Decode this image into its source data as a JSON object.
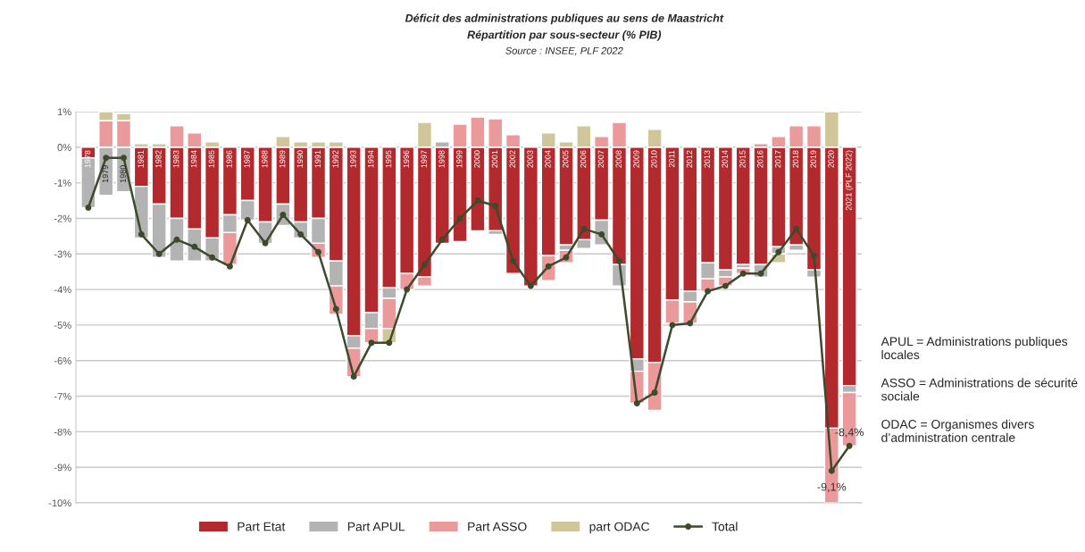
{
  "chart_data": {
    "type": "bar",
    "stacked": true,
    "title": "Déficit des administrations publiques au sens de Maastricht",
    "subtitle": "Répartition par sous-secteur (% PIB)",
    "categories": [
      "1978",
      "1979",
      "1980",
      "1981",
      "1982",
      "1983",
      "1984",
      "1985",
      "1986",
      "1987",
      "1988",
      "1989",
      "1990",
      "1991",
      "1992",
      "1993",
      "1994",
      "1995",
      "1996",
      "1997",
      "1998",
      "1999",
      "2000",
      "2001",
      "2002",
      "2003",
      "2004",
      "2005",
      "2006",
      "2007",
      "2008",
      "2009",
      "2010",
      "2011",
      "2012",
      "2013",
      "2014",
      "2015",
      "2016",
      "2017",
      "2018",
      "2019",
      "2020",
      "2021 (PLF 2022)"
    ],
    "series": [
      {
        "name": "Part Etat",
        "color": "#b22a2e",
        "values": [
          -0.3,
          null,
          null,
          -1.1,
          -1.6,
          -2.0,
          -2.3,
          -2.55,
          -1.9,
          -1.5,
          -2.1,
          -1.6,
          -2.1,
          -2.0,
          -3.2,
          -5.3,
          -4.65,
          -3.95,
          -3.55,
          -3.65,
          -2.7,
          -2.65,
          -2.35,
          -2.35,
          -3.55,
          -3.9,
          -3.05,
          -2.75,
          -2.6,
          -2.05,
          -3.3,
          -5.95,
          -6.05,
          -4.3,
          -4.05,
          -3.25,
          -3.45,
          -3.3,
          -3.3,
          -2.8,
          -2.75,
          -3.45,
          -7.9,
          -6.7
        ]
      },
      {
        "name": "Part APUL",
        "color": "#b3b3b3",
        "values": [
          -1.4,
          -1.35,
          -1.25,
          -1.45,
          -1.5,
          -1.2,
          -0.9,
          -0.65,
          -0.5,
          -0.55,
          -0.6,
          -0.6,
          -0.45,
          -0.7,
          -0.7,
          -0.35,
          -0.45,
          -0.3,
          null,
          null,
          0.15,
          null,
          null,
          -0.1,
          null,
          null,
          null,
          -0.15,
          -0.25,
          -0.7,
          -0.6,
          -0.35,
          null,
          null,
          -0.3,
          -0.45,
          -0.2,
          -0.1,
          -0.35,
          -0.2,
          -0.15,
          -0.2,
          null,
          -0.2
        ]
      },
      {
        "name": "Part ASSO",
        "color": "#eb9a9c",
        "values": [
          null,
          0.75,
          0.75,
          null,
          null,
          0.6,
          0.4,
          null,
          -0.9,
          null,
          null,
          null,
          null,
          -0.4,
          -0.8,
          -0.8,
          -0.4,
          -0.85,
          -0.45,
          -0.25,
          null,
          0.65,
          0.85,
          0.8,
          0.35,
          null,
          -0.7,
          -0.35,
          null,
          0.3,
          0.7,
          -0.9,
          -1.35,
          -0.65,
          -0.6,
          -0.35,
          -0.25,
          -0.15,
          0.1,
          0.3,
          0.6,
          0.6,
          -2.1,
          -1.5
        ]
      },
      {
        "name": "part ODAC",
        "color": "#cfc79a",
        "values": [
          null,
          0.25,
          0.2,
          0.1,
          0.1,
          null,
          null,
          0.15,
          null,
          null,
          null,
          0.3,
          0.15,
          0.15,
          0.15,
          null,
          null,
          -0.4,
          null,
          0.7,
          null,
          null,
          null,
          null,
          null,
          null,
          0.4,
          0.15,
          0.6,
          null,
          null,
          null,
          0.5,
          null,
          null,
          null,
          null,
          null,
          null,
          -0.25,
          null,
          null,
          1.0,
          null
        ]
      },
      {
        "name": "Total",
        "type": "line",
        "color": "#3d4a2b",
        "marker": "circle",
        "values": [
          -1.7,
          -0.3,
          -0.3,
          -2.45,
          -3.0,
          -2.6,
          -2.8,
          -3.1,
          -3.35,
          -2.05,
          -2.7,
          -1.9,
          -2.45,
          -2.95,
          -4.55,
          -6.45,
          -5.5,
          -5.5,
          -4.0,
          -3.3,
          -2.6,
          -2.0,
          -1.5,
          -1.65,
          -3.2,
          -3.9,
          -3.35,
          -3.1,
          -2.3,
          -2.45,
          -3.2,
          -7.2,
          -6.9,
          -5.0,
          -4.95,
          -4.05,
          -3.9,
          -3.55,
          -3.55,
          -2.95,
          -2.3,
          -3.05,
          -9.1,
          -8.4
        ]
      }
    ],
    "ylim": [
      -10,
      1
    ],
    "yticks": [
      {
        "value": 1,
        "label": "1%"
      },
      {
        "value": 0,
        "label": "0%"
      },
      {
        "value": -1,
        "label": "-1%"
      },
      {
        "value": -2,
        "label": "-2%"
      },
      {
        "value": -3,
        "label": "-3%"
      },
      {
        "value": -4,
        "label": "-4%"
      },
      {
        "value": -5,
        "label": "-5%"
      },
      {
        "value": -6,
        "label": "-6%"
      },
      {
        "value": -7,
        "label": "-7%"
      },
      {
        "value": -8,
        "label": "-8%"
      },
      {
        "value": -9,
        "label": "-9%"
      },
      {
        "value": -10,
        "label": "-10%"
      }
    ],
    "grid": "y",
    "legend": "bottom",
    "annotations": [
      "Source : INSEE, PLF 2022",
      {
        "text": "-9,1%",
        "x": "2020",
        "y": -9.1
      },
      {
        "text": "-8,4%",
        "x": "2021 (PLF 2022)",
        "y": -8.4
      },
      "APUL = Administrations publiques locales",
      "ASSO = Administrations de sécurité sociale",
      "ODAC = Organismes divers d’administration centrale"
    ]
  }
}
